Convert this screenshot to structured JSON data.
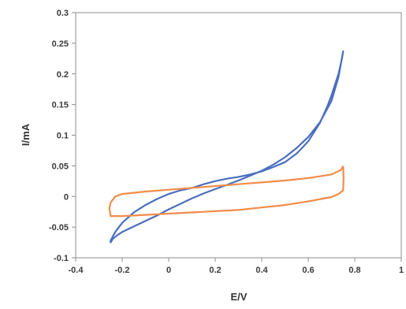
{
  "chart_data": {
    "type": "line",
    "title": "",
    "xlabel": "E/V",
    "ylabel": "I/mA",
    "xlim": [
      -0.4,
      1.0
    ],
    "ylim": [
      -0.1,
      0.3
    ],
    "x_ticks": [
      -0.4,
      -0.2,
      0,
      0.2,
      0.4,
      0.6,
      0.8,
      1
    ],
    "x_tick_labels": [
      "-0.4",
      "-0.2",
      "0",
      "0.2",
      "0.4",
      "0.6",
      "0.8",
      "1"
    ],
    "y_ticks": [
      -0.1,
      -0.05,
      0,
      0.05,
      0.1,
      0.15,
      0.2,
      0.25,
      0.3
    ],
    "y_tick_labels": [
      "-0.1",
      "-0.05",
      "0",
      "0.05",
      "0.1",
      "0.15",
      "0.2",
      "0.25",
      "0.3"
    ],
    "grid": false,
    "legend": "none",
    "series": [
      {
        "color": "#4a6fbf",
        "points": [
          [
            -0.25,
            -0.075
          ],
          [
            -0.24,
            -0.069
          ],
          [
            -0.22,
            -0.063
          ],
          [
            -0.2,
            -0.058
          ],
          [
            -0.15,
            -0.049
          ],
          [
            -0.1,
            -0.04
          ],
          [
            -0.05,
            -0.031
          ],
          [
            0.0,
            -0.021
          ],
          [
            0.05,
            -0.012
          ],
          [
            0.1,
            -0.003
          ],
          [
            0.15,
            0.005
          ],
          [
            0.2,
            0.012
          ],
          [
            0.25,
            0.019
          ],
          [
            0.3,
            0.026
          ],
          [
            0.35,
            0.034
          ],
          [
            0.4,
            0.042
          ],
          [
            0.45,
            0.052
          ],
          [
            0.5,
            0.064
          ],
          [
            0.55,
            0.079
          ],
          [
            0.6,
            0.097
          ],
          [
            0.65,
            0.121
          ],
          [
            0.7,
            0.156
          ],
          [
            0.73,
            0.195
          ],
          [
            0.75,
            0.237
          ],
          [
            0.745,
            0.225
          ],
          [
            0.73,
            0.2
          ],
          [
            0.7,
            0.165
          ],
          [
            0.68,
            0.145
          ],
          [
            0.65,
            0.12
          ],
          [
            0.6,
            0.09
          ],
          [
            0.55,
            0.07
          ],
          [
            0.5,
            0.056
          ],
          [
            0.45,
            0.048
          ],
          [
            0.4,
            0.041
          ],
          [
            0.35,
            0.036
          ],
          [
            0.3,
            0.032
          ],
          [
            0.25,
            0.029
          ],
          [
            0.2,
            0.025
          ],
          [
            0.15,
            0.02
          ],
          [
            0.1,
            0.014
          ],
          [
            0.05,
            0.01
          ],
          [
            0.0,
            0.004
          ],
          [
            -0.05,
            -0.004
          ],
          [
            -0.1,
            -0.014
          ],
          [
            -0.15,
            -0.026
          ],
          [
            -0.2,
            -0.043
          ],
          [
            -0.23,
            -0.058
          ],
          [
            -0.25,
            -0.072
          ]
        ]
      },
      {
        "color": "#f28c4a",
        "points": [
          [
            -0.25,
            -0.032
          ],
          [
            -0.2,
            -0.032
          ],
          [
            -0.1,
            -0.03
          ],
          [
            0.0,
            -0.028
          ],
          [
            0.1,
            -0.026
          ],
          [
            0.2,
            -0.024
          ],
          [
            0.3,
            -0.022
          ],
          [
            0.4,
            -0.018
          ],
          [
            0.5,
            -0.014
          ],
          [
            0.6,
            -0.008
          ],
          [
            0.7,
            -0.001
          ],
          [
            0.73,
            0.004
          ],
          [
            0.75,
            0.01
          ],
          [
            0.752,
            0.03
          ],
          [
            0.75,
            0.049
          ],
          [
            0.74,
            0.043
          ],
          [
            0.7,
            0.036
          ],
          [
            0.6,
            0.03
          ],
          [
            0.5,
            0.026
          ],
          [
            0.4,
            0.023
          ],
          [
            0.3,
            0.02
          ],
          [
            0.2,
            0.017
          ],
          [
            0.1,
            0.014
          ],
          [
            0.0,
            0.011
          ],
          [
            -0.1,
            0.008
          ],
          [
            -0.2,
            0.004
          ],
          [
            -0.23,
            0.0
          ],
          [
            -0.25,
            -0.01
          ],
          [
            -0.255,
            -0.02
          ],
          [
            -0.25,
            -0.032
          ]
        ]
      }
    ]
  }
}
